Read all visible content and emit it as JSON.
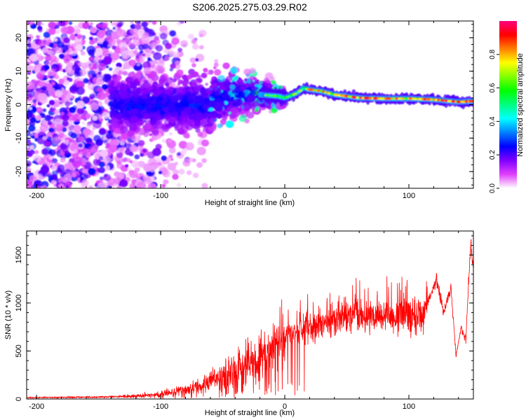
{
  "title": "S206.2025.275.03.29.R02",
  "chart_data": [
    {
      "type": "heatmap",
      "name": "spectrogram",
      "xlabel": "Height of straight line (km)",
      "ylabel": "Frequency (Hz)",
      "xlim": [
        -208,
        152
      ],
      "ylim": [
        -25,
        25
      ],
      "xticks": [
        -200,
        -100,
        0,
        100
      ],
      "yticks": [
        -20,
        -10,
        0,
        10,
        20
      ],
      "colorbar": {
        "label": "Normalized spectral amplitude",
        "range": [
          0,
          1
        ],
        "ticks": [
          0.0,
          0.2,
          0.4,
          0.6,
          0.8
        ],
        "colors": [
          "#ffffff",
          "#e040fb",
          "#8000ff",
          "#0000ff",
          "#0080ff",
          "#00ffff",
          "#00ff80",
          "#00ff00",
          "#80ff00",
          "#ffff00",
          "#ff8000",
          "#ff0000",
          "#ff0080"
        ]
      },
      "ridge": {
        "x": [
          -60,
          -40,
          -20,
          -5,
          0,
          10,
          15,
          20,
          30,
          40,
          60,
          80,
          100,
          120,
          140,
          150
        ],
        "y": [
          1.0,
          3.0,
          3.0,
          2.5,
          2.0,
          3.5,
          5.0,
          4.5,
          4.0,
          3.0,
          2.0,
          1.8,
          1.8,
          1.5,
          0.8,
          1.0
        ]
      }
    },
    {
      "type": "line",
      "name": "snr",
      "xlabel": "Height of straight line (km)",
      "ylabel": "SNR (10 * v/v)",
      "xlim": [
        -208,
        152
      ],
      "ylim": [
        0,
        1750
      ],
      "xticks": [
        -200,
        -100,
        0,
        100
      ],
      "yticks": [
        0,
        500,
        1000,
        1500
      ],
      "color": "#ff0000",
      "envelope": {
        "x": [
          -208,
          -150,
          -120,
          -100,
          -80,
          -60,
          -40,
          -20,
          -10,
          0,
          20,
          40,
          60,
          80,
          100,
          110,
          118,
          122,
          128,
          134,
          138,
          142,
          146,
          148,
          150,
          152
        ],
        "y": [
          15,
          20,
          30,
          50,
          90,
          180,
          280,
          420,
          480,
          650,
          760,
          820,
          850,
          860,
          880,
          880,
          1100,
          1250,
          900,
          1150,
          450,
          750,
          600,
          1200,
          1650,
          1300
        ]
      }
    }
  ]
}
